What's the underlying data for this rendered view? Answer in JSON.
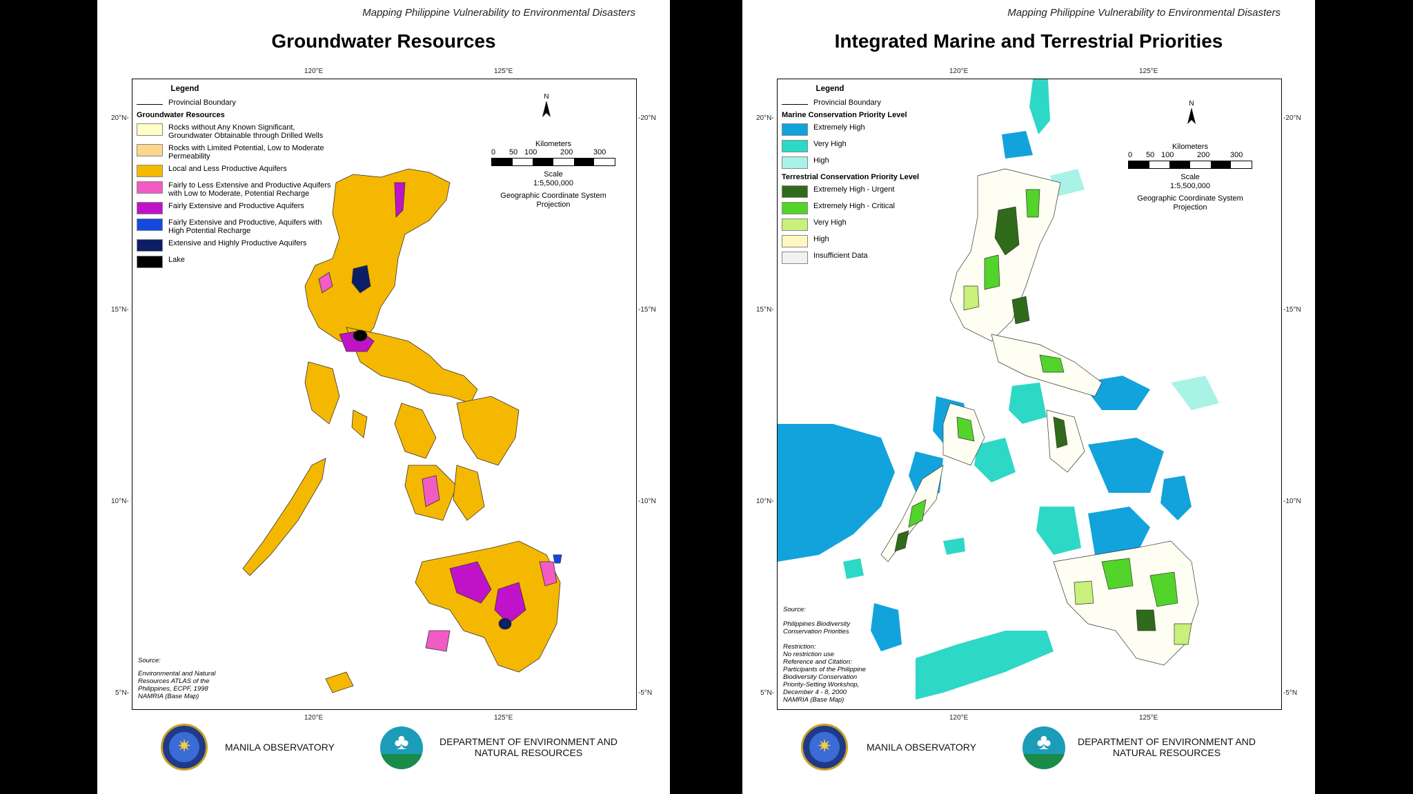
{
  "header_note": "Mapping Philippine Vulnerability to Environmental Disasters",
  "ticks": {
    "lon_120": "120°E",
    "lon_125": "125°E",
    "lat_20_left": "20°N-",
    "lat_15_left": "15°N-",
    "lat_10_left": "10°N-",
    "lat_5_left": "5°N-",
    "lat_20_right": "-20°N",
    "lat_15_right": "-15°N",
    "lat_10_right": "-10°N",
    "lat_5_right": "-5°N"
  },
  "north_label": "N",
  "scale": {
    "units": "Kilometers",
    "ticks": [
      "0",
      "50",
      "100",
      "200",
      "300"
    ],
    "scale_label": "Scale",
    "scale_value": "1:5,500,000",
    "projection_line1": "Geographic Coordinate System",
    "projection_line2": "Projection"
  },
  "left_map": {
    "title": "Groundwater Resources",
    "legend": {
      "title": "Legend",
      "boundary": "Provincial Boundary",
      "section": "Groundwater Resources",
      "items": [
        {
          "label": "Rocks without Any Known Significant, Groundwater Obtainable through Drilled Wells",
          "color": "#fffdc8"
        },
        {
          "label": "Rocks with Limited Potential, Low to Moderate Permeability",
          "color": "#fcd68a"
        },
        {
          "label": "Local and Less Productive Aquifers",
          "color": "#f5b800"
        },
        {
          "label": "Fairly to Less Extensive and Productive Aquifers with Low to Moderate, Potential Recharge",
          "color": "#f25bc4"
        },
        {
          "label": "Fairly Extensive and Productive Aquifers",
          "color": "#c013c9"
        },
        {
          "label": "Fairly Extensive and Productive, Aquifers with High Potential Recharge",
          "color": "#1548e0"
        },
        {
          "label": "Extensive and Highly Productive Aquifers",
          "color": "#0c1f66"
        },
        {
          "label": "Lake",
          "color": "#000000"
        }
      ]
    },
    "source": {
      "heading": "Source:",
      "lines": [
        "Environmental and Natural",
        "Resources ATLAS of the",
        "Philippines, ECPF, 1998",
        "NAMRIA (Base Map)"
      ]
    }
  },
  "right_map": {
    "title": "Integrated Marine and Terrestrial Priorities",
    "legend": {
      "title": "Legend",
      "boundary": "Provincial Boundary",
      "marine_section": "Marine Conservation Priority Level",
      "marine_items": [
        {
          "label": "Extremely High",
          "color": "#12a3dc"
        },
        {
          "label": "Very High",
          "color": "#2ed8c6"
        },
        {
          "label": "High",
          "color": "#a8f3e6"
        }
      ],
      "terrestrial_section": "Terrestrial Conservation Priority Level",
      "terrestrial_items": [
        {
          "label": "Extremely High - Urgent",
          "color": "#2f6b1a"
        },
        {
          "label": "Extremely High - Critical",
          "color": "#52d42a"
        },
        {
          "label": "Very High",
          "color": "#c8f07a"
        },
        {
          "label": "High",
          "color": "#fdf7c2"
        },
        {
          "label": "Insufficient Data",
          "color": "#f2f2f2"
        }
      ]
    },
    "source": {
      "heading": "Source:",
      "lines": [
        "Philippines Biodiversity",
        "Conservation Priorities",
        "",
        "Restriction:",
        "No restriction use",
        "Reference and Citation:",
        "Participants of the Philippine",
        "Biodiversity Conservation",
        "Priority-Setting Workshop,",
        "December 4 - 8, 2000",
        "NAMRIA (Base Map)"
      ]
    }
  },
  "footer": {
    "observatory": "MANILA OBSERVATORY",
    "denr_line1": "DEPARTMENT OF ENVIRONMENT AND",
    "denr_line2": "NATURAL RESOURCES"
  }
}
